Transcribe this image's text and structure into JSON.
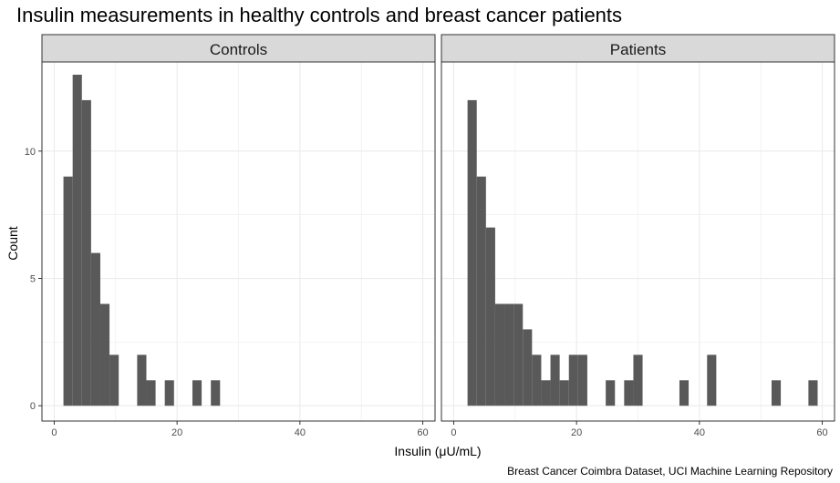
{
  "title": "Insulin measurements in healthy controls and breast cancer patients",
  "caption": "Breast Cancer Coimbra Dataset, UCI Machine Learning Repository",
  "colors": {
    "bar": "#595959",
    "strip_fill": "#d9d9d9",
    "grid": "#ebebeb",
    "panel_border": "#333333"
  },
  "chart_data": {
    "type": "bar",
    "title": "Insulin measurements in healthy controls and breast cancer patients",
    "xlabel": "Insulin (μU/mL)",
    "ylabel": "Count",
    "xlim": [
      -2,
      62
    ],
    "ylim": [
      -0.6,
      13.5
    ],
    "x_ticks": [
      0,
      20,
      40,
      60
    ],
    "y_ticks": [
      0,
      5,
      10
    ],
    "bin_width": 1.5,
    "grid": true,
    "panels": [
      {
        "name": "Controls",
        "bins": [
          {
            "x": 2.25,
            "count": 9
          },
          {
            "x": 3.75,
            "count": 13
          },
          {
            "x": 5.25,
            "count": 12
          },
          {
            "x": 6.75,
            "count": 6
          },
          {
            "x": 8.25,
            "count": 4
          },
          {
            "x": 9.75,
            "count": 2
          },
          {
            "x": 14.25,
            "count": 2
          },
          {
            "x": 15.75,
            "count": 1
          },
          {
            "x": 18.75,
            "count": 1
          },
          {
            "x": 23.25,
            "count": 1
          },
          {
            "x": 26.25,
            "count": 1
          }
        ]
      },
      {
        "name": "Patients",
        "bins": [
          {
            "x": 3.0,
            "count": 12
          },
          {
            "x": 4.5,
            "count": 9
          },
          {
            "x": 6.0,
            "count": 7
          },
          {
            "x": 7.5,
            "count": 4
          },
          {
            "x": 9.0,
            "count": 4
          },
          {
            "x": 10.5,
            "count": 4
          },
          {
            "x": 12.0,
            "count": 3
          },
          {
            "x": 13.5,
            "count": 2
          },
          {
            "x": 15.0,
            "count": 1
          },
          {
            "x": 16.5,
            "count": 2
          },
          {
            "x": 18.0,
            "count": 1
          },
          {
            "x": 19.5,
            "count": 2
          },
          {
            "x": 21.0,
            "count": 2
          },
          {
            "x": 25.5,
            "count": 1
          },
          {
            "x": 28.5,
            "count": 1
          },
          {
            "x": 30.0,
            "count": 2
          },
          {
            "x": 37.5,
            "count": 1
          },
          {
            "x": 42.0,
            "count": 2
          },
          {
            "x": 52.5,
            "count": 1
          },
          {
            "x": 58.5,
            "count": 1
          }
        ]
      }
    ]
  }
}
